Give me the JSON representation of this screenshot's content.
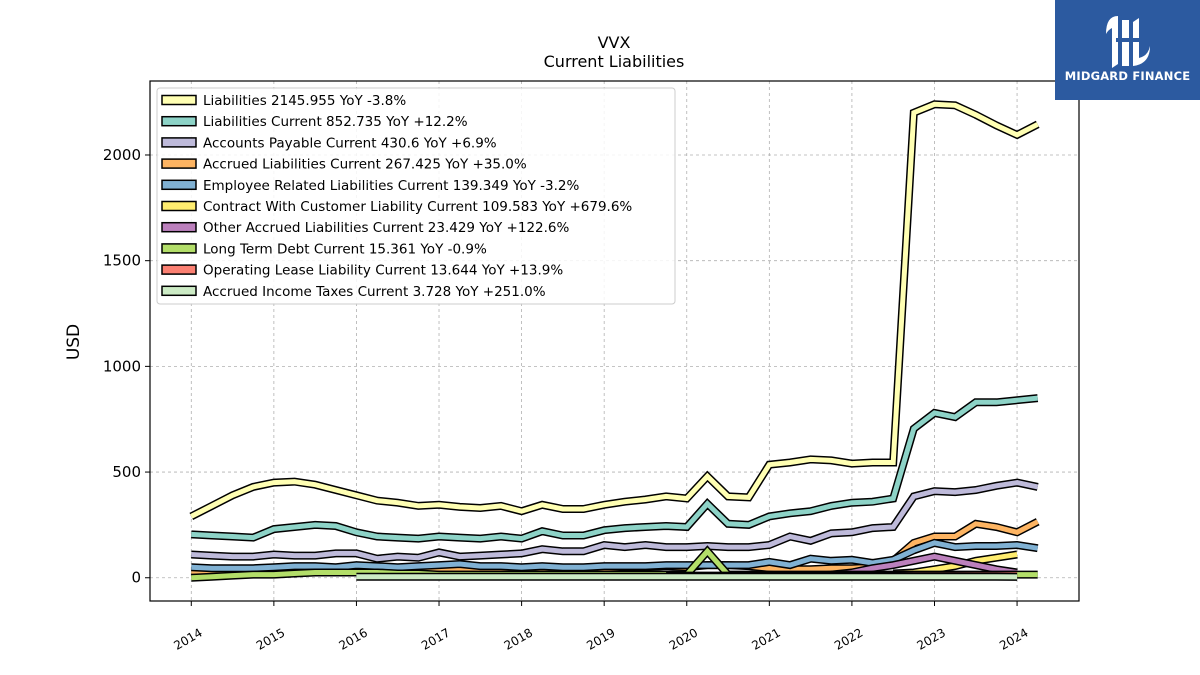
{
  "logo": {
    "text": "MIDGARD FINANCE",
    "background": "#2c5aa0"
  },
  "chart_data": {
    "type": "line",
    "title": "VVX",
    "subtitle": "Current  Liabilities",
    "ylabel": "USD",
    "xlim": [
      2013.5,
      2024.75
    ],
    "ylim": [
      -110,
      2350
    ],
    "yticks": [
      0,
      500,
      1000,
      1500,
      2000
    ],
    "xticks": [
      2014,
      2015,
      2016,
      2017,
      2018,
      2019,
      2020,
      2021,
      2022,
      2023,
      2024
    ],
    "grid": true,
    "legend_position": "top-left",
    "series": [
      {
        "name": "Liabilities",
        "legend": "Liabilities  2145.955 YoY -3.8%",
        "color": "#ffffb3",
        "x": [
          2014.0,
          2014.25,
          2014.5,
          2014.75,
          2015.0,
          2015.25,
          2015.5,
          2015.75,
          2016.0,
          2016.25,
          2016.5,
          2016.75,
          2017.0,
          2017.25,
          2017.5,
          2017.75,
          2018.0,
          2018.25,
          2018.5,
          2018.75,
          2019.0,
          2019.25,
          2019.5,
          2019.75,
          2020.0,
          2020.25,
          2020.5,
          2020.75,
          2021.0,
          2021.25,
          2021.5,
          2021.75,
          2022.0,
          2022.25,
          2022.5,
          2022.75,
          2023.0,
          2023.25,
          2023.5,
          2023.75,
          2024.0,
          2024.25
        ],
        "values": [
          290,
          340,
          390,
          430,
          450,
          455,
          440,
          415,
          390,
          365,
          355,
          340,
          345,
          335,
          330,
          340,
          315,
          345,
          325,
          325,
          345,
          360,
          370,
          385,
          375,
          480,
          385,
          380,
          535,
          545,
          560,
          555,
          540,
          545,
          545,
          2200,
          2240,
          2235,
          2190,
          2140,
          2095,
          2145
        ]
      },
      {
        "name": "Liabilities Current",
        "legend": "Liabilities Current  852.735 YoY +12.2%",
        "color": "#8dd3c7",
        "x": [
          2014.0,
          2014.25,
          2014.5,
          2014.75,
          2015.0,
          2015.25,
          2015.5,
          2015.75,
          2016.0,
          2016.25,
          2016.5,
          2016.75,
          2017.0,
          2017.25,
          2017.5,
          2017.75,
          2018.0,
          2018.25,
          2018.5,
          2018.75,
          2019.0,
          2019.25,
          2019.5,
          2019.75,
          2020.0,
          2020.25,
          2020.5,
          2020.75,
          2021.0,
          2021.25,
          2021.5,
          2021.75,
          2022.0,
          2022.25,
          2022.5,
          2022.75,
          2023.0,
          2023.25,
          2023.5,
          2023.75,
          2024.0,
          2024.25
        ],
        "values": [
          205,
          200,
          195,
          190,
          230,
          240,
          250,
          245,
          215,
          195,
          190,
          185,
          195,
          190,
          185,
          195,
          185,
          220,
          200,
          200,
          225,
          235,
          240,
          245,
          240,
          350,
          255,
          250,
          290,
          305,
          315,
          340,
          355,
          360,
          375,
          705,
          780,
          760,
          830,
          830,
          840,
          850
        ]
      },
      {
        "name": "Accounts Payable Current",
        "legend": "Accounts Payable Current  430.6 YoY +6.9%",
        "color": "#bebada",
        "x": [
          2014.0,
          2014.25,
          2014.5,
          2014.75,
          2015.0,
          2015.25,
          2015.5,
          2015.75,
          2016.0,
          2016.25,
          2016.5,
          2016.75,
          2017.0,
          2017.25,
          2017.5,
          2017.75,
          2018.0,
          2018.25,
          2018.5,
          2018.75,
          2019.0,
          2019.25,
          2019.5,
          2019.75,
          2020.0,
          2020.25,
          2020.5,
          2020.75,
          2021.0,
          2021.25,
          2021.5,
          2021.75,
          2022.0,
          2022.25,
          2022.5,
          2022.75,
          2023.0,
          2023.25,
          2023.5,
          2023.75,
          2024.0,
          2024.25
        ],
        "values": [
          110,
          105,
          100,
          100,
          110,
          105,
          105,
          115,
          115,
          90,
          100,
          95,
          120,
          100,
          105,
          110,
          115,
          135,
          125,
          125,
          155,
          145,
          155,
          145,
          145,
          150,
          145,
          145,
          155,
          195,
          175,
          210,
          215,
          235,
          240,
          385,
          410,
          405,
          415,
          435,
          450,
          430
        ]
      },
      {
        "name": "Accrued Liabilities Current",
        "legend": "Accrued Liabilities Current  267.425 YoY +35.0%",
        "color": "#fdb462",
        "x": [
          2014.0,
          2014.25,
          2014.5,
          2014.75,
          2015.0,
          2015.25,
          2015.5,
          2015.75,
          2016.0,
          2016.25,
          2016.5,
          2016.75,
          2017.0,
          2017.25,
          2017.5,
          2017.75,
          2018.0,
          2018.25,
          2018.5,
          2018.75,
          2019.0,
          2019.25,
          2019.5,
          2019.75,
          2020.0,
          2020.25,
          2020.5,
          2020.75,
          2021.0,
          2021.25,
          2021.5,
          2021.75,
          2022.0,
          2022.25,
          2022.5,
          2022.75,
          2023.0,
          2023.25,
          2023.5,
          2023.75,
          2024.0,
          2024.25
        ],
        "values": [
          30,
          30,
          30,
          35,
          45,
          50,
          50,
          45,
          45,
          40,
          40,
          40,
          45,
          45,
          45,
          45,
          45,
          45,
          45,
          45,
          45,
          50,
          50,
          55,
          50,
          60,
          60,
          55,
          45,
          40,
          40,
          45,
          45,
          50,
          80,
          165,
          195,
          195,
          255,
          240,
          215,
          265
        ]
      },
      {
        "name": "Employee Related Liabilities Current",
        "legend": "Employee Related Liabilities Current  139.349 YoY -3.2%",
        "color": "#80b1d3",
        "x": [
          2014.0,
          2014.25,
          2014.5,
          2014.75,
          2015.0,
          2015.25,
          2015.5,
          2015.75,
          2016.0,
          2016.25,
          2016.5,
          2016.75,
          2017.0,
          2017.25,
          2017.5,
          2017.75,
          2018.0,
          2018.25,
          2018.5,
          2018.75,
          2019.0,
          2019.25,
          2019.5,
          2019.75,
          2020.0,
          2020.25,
          2020.5,
          2020.75,
          2021.0,
          2021.25,
          2021.5,
          2021.75,
          2022.0,
          2022.25,
          2022.5,
          2022.75,
          2023.0,
          2023.25,
          2023.5,
          2023.75,
          2024.0,
          2024.25
        ],
        "values": [
          50,
          45,
          45,
          45,
          50,
          55,
          55,
          50,
          60,
          55,
          50,
          55,
          60,
          65,
          55,
          55,
          50,
          55,
          50,
          50,
          55,
          55,
          55,
          60,
          60,
          60,
          60,
          60,
          75,
          60,
          90,
          80,
          85,
          70,
          85,
          130,
          165,
          145,
          150,
          150,
          155,
          140
        ]
      },
      {
        "name": "Contract With Customer Liability Current",
        "legend": "Contract With Customer Liability Current  109.583 YoY +679.6%",
        "color": "#ffed6f",
        "x": [
          2022.5,
          2022.75,
          2023.0,
          2023.25,
          2023.5,
          2023.75,
          2024.0
        ],
        "values": [
          20,
          25,
          40,
          55,
          80,
          95,
          110
        ]
      },
      {
        "name": "Other Accrued Liabilities Current",
        "legend": "Other Accrued Liabilities Current  23.429 YoY +122.6%",
        "color": "#bc80bd",
        "x": [
          2021.75,
          2022.0,
          2022.25,
          2022.5,
          2022.75,
          2023.0,
          2023.25,
          2023.5,
          2023.75,
          2024.0
        ],
        "values": [
          15,
          25,
          45,
          60,
          80,
          100,
          80,
          60,
          40,
          25
        ]
      },
      {
        "name": "Long Term Debt Current",
        "legend": "Long Term Debt Current  15.361 YoY -0.9%",
        "color": "#b3de69",
        "x": [
          2014.0,
          2014.25,
          2014.5,
          2014.75,
          2015.0,
          2015.25,
          2015.5,
          2015.75,
          2016.0,
          2016.25,
          2016.5,
          2016.75,
          2017.0,
          2017.25,
          2017.5,
          2017.75,
          2018.0,
          2018.25,
          2018.5,
          2018.75,
          2019.0,
          2019.25,
          2019.5,
          2019.75,
          2020.0,
          2020.25,
          2020.5,
          2020.75,
          2021.0,
          2021.25,
          2021.5,
          2021.75,
          2022.0,
          2022.25,
          2022.5,
          2022.75,
          2023.0,
          2023.25,
          2023.5,
          2023.75,
          2024.0,
          2024.25
        ],
        "values": [
          0,
          5,
          10,
          15,
          15,
          20,
          25,
          25,
          25,
          25,
          20,
          20,
          15,
          15,
          15,
          15,
          15,
          15,
          15,
          15,
          15,
          15,
          15,
          15,
          15,
          125,
          15,
          15,
          15,
          15,
          15,
          15,
          15,
          15,
          15,
          15,
          15,
          15,
          15,
          15,
          15,
          15
        ]
      },
      {
        "name": "Operating Lease Liability Current",
        "legend": "Operating Lease Liability Current  13.644 YoY +13.9%",
        "color": "#fb8072",
        "x": [
          2019.75,
          2020.0,
          2020.25,
          2020.5,
          2020.75,
          2021.0,
          2021.25,
          2021.5,
          2021.75,
          2022.0,
          2022.25,
          2022.5,
          2022.75,
          2023.0,
          2023.25,
          2023.5,
          2023.75,
          2024.0
        ],
        "values": [
          10,
          10,
          10,
          10,
          10,
          10,
          10,
          10,
          10,
          10,
          10,
          10,
          12,
          12,
          12,
          13,
          13,
          14
        ]
      },
      {
        "name": "Accrued Income Taxes Current",
        "legend": "Accrued Income Taxes Current  3.728 YoY +251.0%",
        "color": "#ccebc5",
        "x": [
          2016.0,
          2016.25,
          2016.5,
          2016.75,
          2017.0,
          2017.25,
          2017.5,
          2017.75,
          2018.0,
          2018.25,
          2018.5,
          2018.75,
          2019.0,
          2019.25,
          2019.5,
          2019.75,
          2020.0,
          2020.25,
          2020.5,
          2020.75,
          2021.0,
          2021.25,
          2021.5,
          2021.75,
          2022.0,
          2022.25,
          2022.5,
          2022.75,
          2023.0,
          2023.25,
          2023.5,
          2023.75,
          2024.0
        ],
        "values": [
          5,
          5,
          5,
          5,
          5,
          5,
          5,
          5,
          5,
          5,
          5,
          5,
          5,
          5,
          5,
          5,
          5,
          5,
          5,
          5,
          5,
          5,
          5,
          5,
          5,
          5,
          5,
          5,
          5,
          5,
          5,
          5,
          4
        ]
      }
    ]
  }
}
